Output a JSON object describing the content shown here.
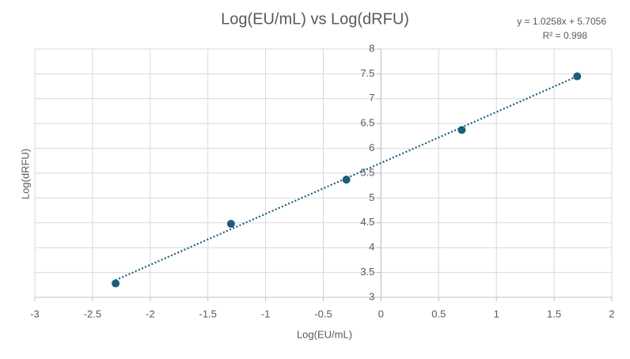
{
  "chart_data": {
    "type": "scatter",
    "title": "Log(EU/mL) vs Log(dRFU)",
    "x_label": "Log(EU/mL)",
    "y_label": "Log(dRFU)",
    "series": [
      {
        "name": "Log(dRFU)",
        "color": "#1b5e7b",
        "x": [
          -2.3,
          -1.3,
          -0.3,
          0.7,
          1.7
        ],
        "values": [
          3.28,
          4.48,
          5.37,
          6.37,
          7.45
        ]
      }
    ],
    "trendline": {
      "slope": 1.0258,
      "intercept": 5.7056,
      "label": "y = 1.0258x + 5.7056",
      "r_squared": 0.998,
      "r_squared_label": "R² = 0.998"
    },
    "xlim": [
      -3,
      2
    ],
    "xticks": [
      -3,
      -2.5,
      -2,
      -1.5,
      -1,
      -0.5,
      0,
      0.5,
      1,
      1.5,
      2
    ],
    "ylim": [
      3,
      8
    ],
    "yticks": [
      3,
      3.5,
      4,
      4.5,
      5,
      5.5,
      6,
      6.5,
      7,
      7.5,
      8
    ],
    "grid": true
  }
}
